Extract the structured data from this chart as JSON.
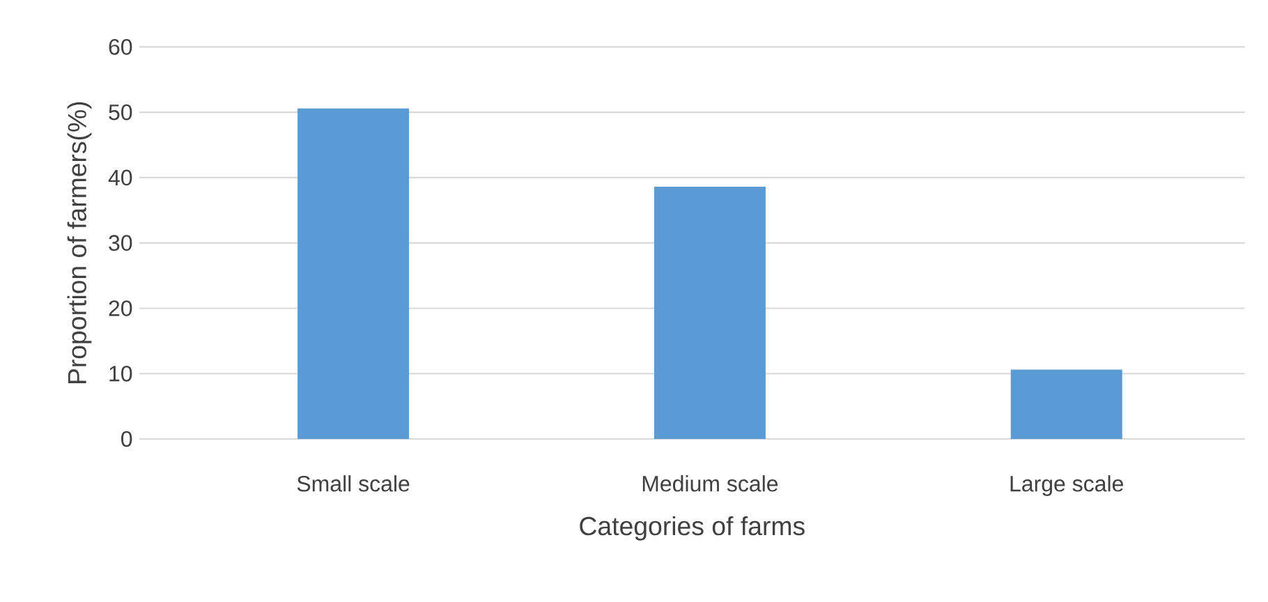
{
  "chart_data": {
    "type": "bar",
    "xlabel": "Categories of farms",
    "ylabel": "Proportion of farmers(%)",
    "categories": [
      "Small scale",
      "Medium scale",
      "Large scale"
    ],
    "values": [
      50.6,
      38.6,
      10.6
    ],
    "color": "#5b9bd5",
    "ylim": [
      0,
      60
    ],
    "yticks": [
      0,
      10,
      20,
      30,
      40,
      50,
      60
    ],
    "grid": "y"
  }
}
